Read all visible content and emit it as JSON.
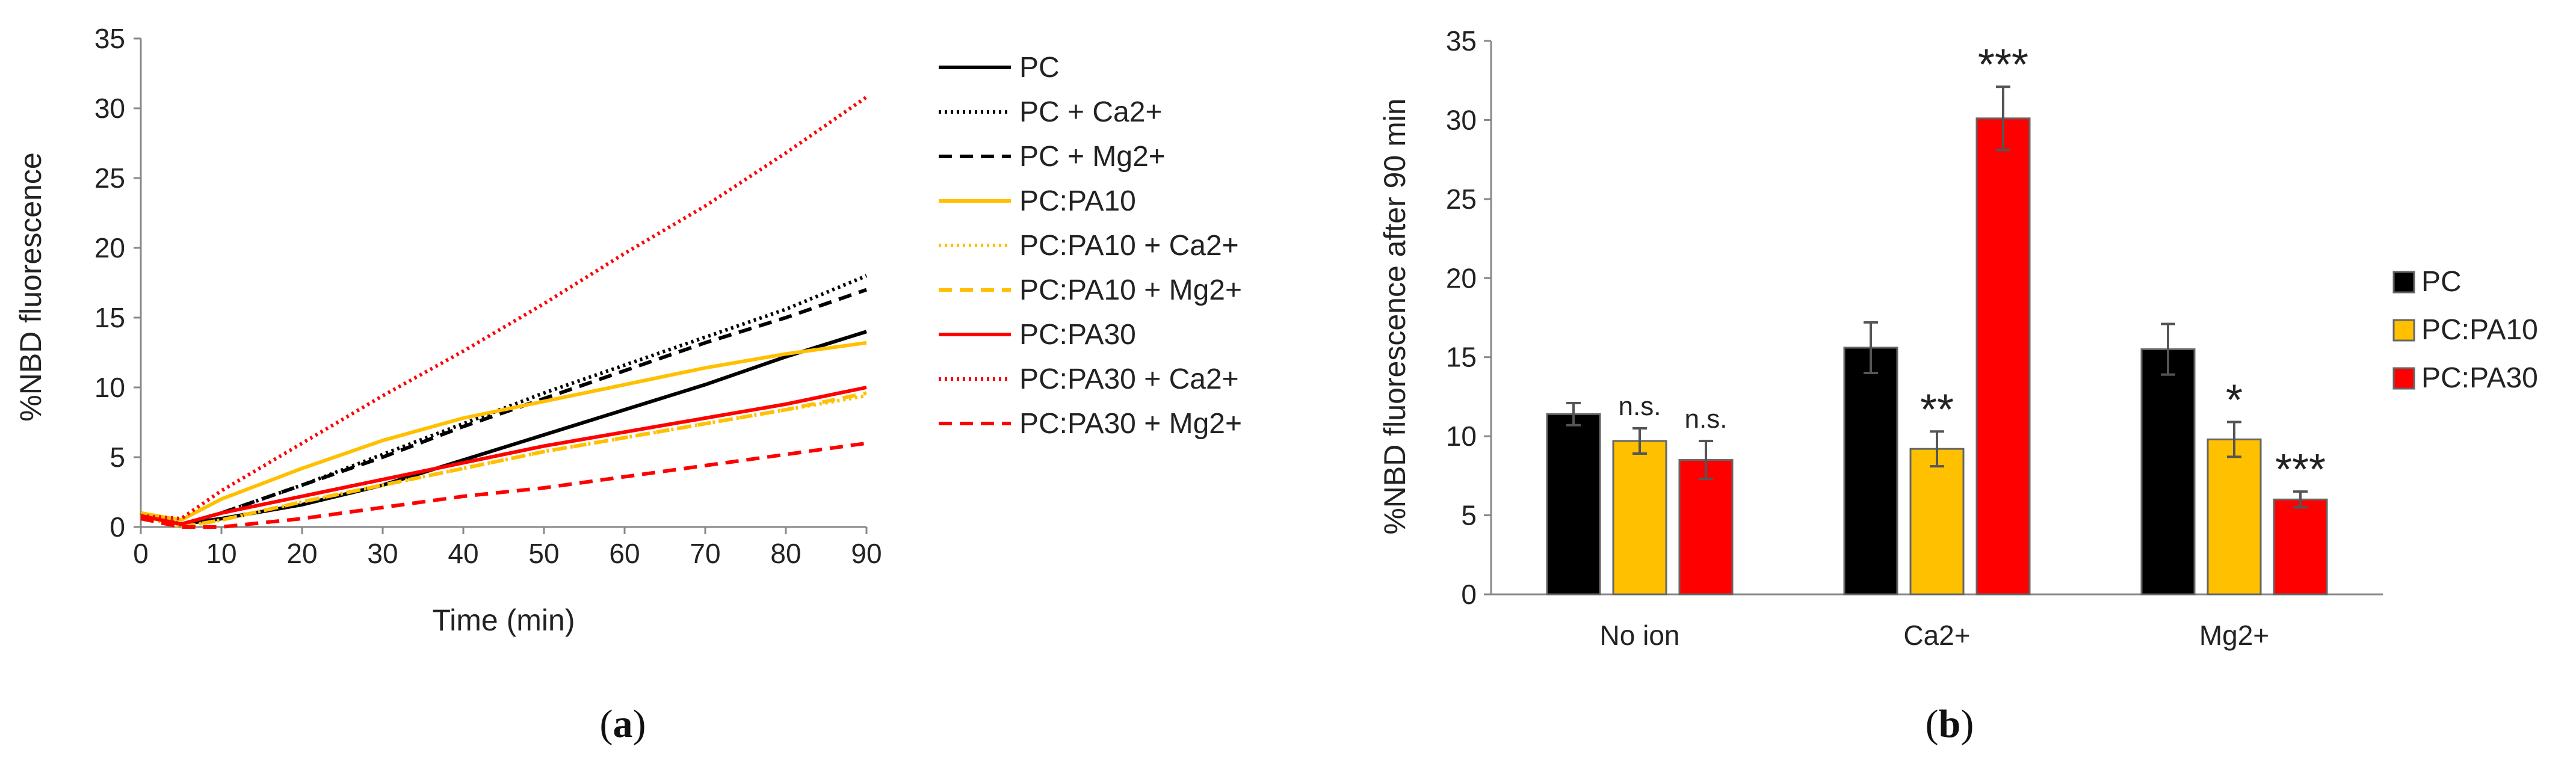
{
  "chart_data": [
    {
      "panel": "a",
      "type": "line",
      "xlabel": "Time (min)",
      "ylabel": "%NBD fluorescence",
      "xlim": [
        0,
        90
      ],
      "ylim": [
        0,
        35
      ],
      "xticks": [
        0,
        10,
        20,
        30,
        40,
        50,
        60,
        70,
        80,
        90
      ],
      "yticks": [
        0,
        5,
        10,
        15,
        20,
        25,
        30,
        35
      ],
      "legend_position": "right",
      "series": [
        {
          "name": "PC",
          "color": "#000000",
          "dash": "solid",
          "x": [
            0,
            5,
            10,
            20,
            30,
            40,
            50,
            60,
            70,
            80,
            90
          ],
          "y": [
            0.8,
            0.2,
            0.6,
            1.6,
            3.0,
            4.8,
            6.6,
            8.4,
            10.2,
            12.2,
            14.0
          ]
        },
        {
          "name": "PC + Ca2+",
          "color": "#000000",
          "dash": "dotted",
          "x": [
            0,
            5,
            10,
            20,
            30,
            40,
            50,
            60,
            70,
            80,
            90
          ],
          "y": [
            1.0,
            0.2,
            1.0,
            3.0,
            5.2,
            7.4,
            9.6,
            11.6,
            13.6,
            15.6,
            18.0
          ]
        },
        {
          "name": "PC + Mg2+",
          "color": "#000000",
          "dash": "dashed",
          "x": [
            0,
            5,
            10,
            20,
            30,
            40,
            50,
            60,
            70,
            80,
            90
          ],
          "y": [
            1.0,
            0.2,
            1.0,
            3.0,
            5.0,
            7.2,
            9.2,
            11.2,
            13.2,
            15.0,
            17.0
          ]
        },
        {
          "name": "PC:PA10",
          "color": "#FFC000",
          "dash": "solid",
          "x": [
            0,
            5,
            10,
            20,
            30,
            40,
            50,
            60,
            70,
            80,
            90
          ],
          "y": [
            1.0,
            0.5,
            2.0,
            4.2,
            6.2,
            7.8,
            9.0,
            10.2,
            11.4,
            12.4,
            13.2
          ]
        },
        {
          "name": "PC:PA10 + Ca2+",
          "color": "#FFC000",
          "dash": "dotted",
          "x": [
            0,
            5,
            10,
            20,
            30,
            40,
            50,
            60,
            70,
            80,
            90
          ],
          "y": [
            0.8,
            0.0,
            0.5,
            1.8,
            3.0,
            4.2,
            5.4,
            6.4,
            7.4,
            8.4,
            9.4
          ]
        },
        {
          "name": "PC:PA10 + Mg2+",
          "color": "#FFC000",
          "dash": "dashed",
          "x": [
            0,
            5,
            10,
            20,
            30,
            40,
            50,
            60,
            70,
            80,
            90
          ],
          "y": [
            0.8,
            0.0,
            0.5,
            1.8,
            3.0,
            4.2,
            5.4,
            6.4,
            7.4,
            8.4,
            9.6
          ]
        },
        {
          "name": "PC:PA30",
          "color": "#FF0000",
          "dash": "solid",
          "x": [
            0,
            5,
            10,
            20,
            30,
            40,
            50,
            60,
            70,
            80,
            90
          ],
          "y": [
            0.8,
            0.2,
            1.0,
            2.2,
            3.4,
            4.6,
            5.8,
            6.8,
            7.8,
            8.8,
            10.0
          ]
        },
        {
          "name": "PC:PA30 + Ca2+",
          "color": "#FF0000",
          "dash": "dotted",
          "x": [
            0,
            5,
            10,
            20,
            30,
            40,
            50,
            60,
            70,
            80,
            90
          ],
          "y": [
            0.8,
            0.6,
            2.6,
            6.0,
            9.4,
            12.6,
            16.0,
            19.6,
            23.0,
            26.8,
            30.8
          ]
        },
        {
          "name": "PC:PA30 + Mg2+",
          "color": "#FF0000",
          "dash": "dashed",
          "x": [
            0,
            5,
            10,
            20,
            30,
            40,
            50,
            60,
            70,
            80,
            90
          ],
          "y": [
            0.6,
            0.0,
            0.0,
            0.6,
            1.4,
            2.2,
            2.8,
            3.6,
            4.4,
            5.2,
            6.0
          ]
        }
      ],
      "panel_label": "a"
    },
    {
      "panel": "b",
      "type": "bar",
      "ylabel": "%NBD fluorescence after 90 min",
      "ylim": [
        0,
        35
      ],
      "yticks": [
        0,
        5,
        10,
        15,
        20,
        25,
        30,
        35
      ],
      "categories": [
        "No ion",
        "Ca2+",
        "Mg2+"
      ],
      "legend_position": "right",
      "series": [
        {
          "name": "PC",
          "color": "#000000",
          "values": [
            11.4,
            15.6,
            15.5
          ],
          "errors": [
            0.7,
            1.6,
            1.6
          ]
        },
        {
          "name": "PC:PA10",
          "color": "#FFC000",
          "values": [
            9.7,
            9.2,
            9.8
          ],
          "errors": [
            0.8,
            1.1,
            1.1
          ]
        },
        {
          "name": "PC:PA30",
          "color": "#FF0000",
          "values": [
            8.5,
            30.1,
            6.0
          ],
          "errors": [
            1.2,
            2.0,
            0.5
          ]
        }
      ],
      "annotations": [
        {
          "category": "No ion",
          "series": "PC:PA10",
          "text": "n.s."
        },
        {
          "category": "No ion",
          "series": "PC:PA30",
          "text": "n.s."
        },
        {
          "category": "Ca2+",
          "series": "PC:PA10",
          "text": "**"
        },
        {
          "category": "Ca2+",
          "series": "PC:PA30",
          "text": "***"
        },
        {
          "category": "Mg2+",
          "series": "PC:PA10",
          "text": "*"
        },
        {
          "category": "Mg2+",
          "series": "PC:PA30",
          "text": "***"
        }
      ],
      "panel_label": "b"
    }
  ]
}
